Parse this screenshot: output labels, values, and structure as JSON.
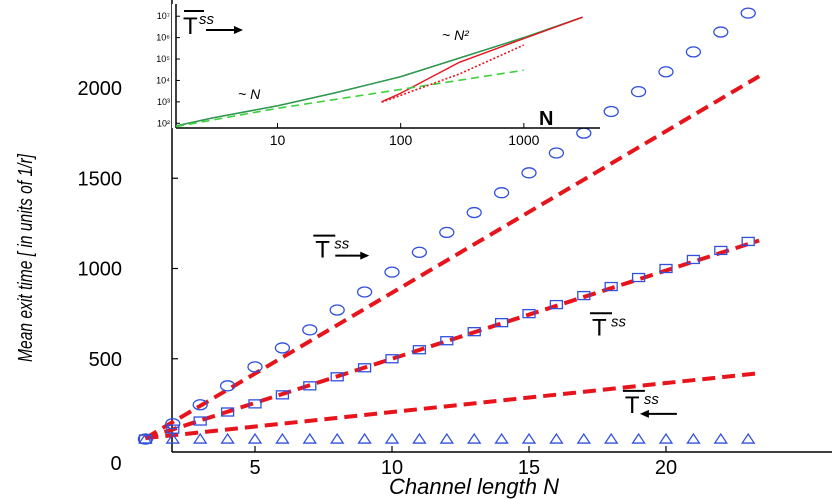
{
  "chart_data": [
    {
      "type": "scatter",
      "xlabel": "Channel length N",
      "ylabel": "Mean exit time [ in units of 1/r]",
      "xlim": [
        0,
        25
      ],
      "ylim": [
        0,
        2500
      ],
      "x_ticks": [
        "5",
        "10",
        "15",
        "20"
      ],
      "y_ticks": [
        "500",
        "1000",
        "1500",
        "2000"
      ],
      "origin_label": "0",
      "grid": false,
      "series": [
        {
          "name": "T̄ss →",
          "marker": "circle",
          "color": "#3050e0",
          "x": [
            1,
            2,
            3,
            4,
            5,
            6,
            7,
            8,
            9,
            10,
            11,
            12,
            13,
            14,
            15,
            16,
            17,
            18,
            19,
            20,
            21,
            22,
            23
          ],
          "y": [
            55,
            140,
            245,
            350,
            455,
            560,
            660,
            770,
            870,
            980,
            1090,
            1200,
            1310,
            1420,
            1530,
            1640,
            1750,
            1870,
            1980,
            2090,
            2200,
            2310,
            2415
          ]
        },
        {
          "name": "T̄ss",
          "marker": "square",
          "color": "#3050e0",
          "x": [
            1,
            2,
            3,
            4,
            5,
            6,
            7,
            8,
            9,
            10,
            11,
            12,
            13,
            14,
            15,
            16,
            17,
            18,
            19,
            20,
            21,
            22,
            23
          ],
          "y": [
            55,
            110,
            155,
            205,
            250,
            300,
            350,
            400,
            450,
            500,
            550,
            600,
            650,
            700,
            750,
            800,
            850,
            900,
            950,
            1000,
            1050,
            1100,
            1150
          ]
        },
        {
          "name": "T̄ss ←",
          "marker": "triangle",
          "color": "#3050e0",
          "x": [
            1,
            2,
            3,
            4,
            5,
            6,
            7,
            8,
            9,
            10,
            11,
            12,
            13,
            14,
            15,
            16,
            17,
            18,
            19,
            20,
            21,
            22,
            23
          ],
          "y": [
            55,
            55,
            55,
            55,
            55,
            55,
            55,
            55,
            55,
            55,
            55,
            55,
            55,
            55,
            55,
            55,
            55,
            55,
            55,
            55,
            55,
            55,
            55
          ]
        }
      ],
      "lines": [
        {
          "style": "dashed",
          "color": "#e8141c",
          "x": [
            1,
            23.4
          ],
          "y": [
            60,
            2065
          ]
        },
        {
          "style": "dashed",
          "color": "#e8141c",
          "x": [
            1,
            23.4
          ],
          "y": [
            60,
            1155
          ]
        },
        {
          "style": "dashed",
          "color": "#e8141c",
          "x": [
            1,
            23.4
          ],
          "y": [
            60,
            420
          ]
        }
      ],
      "annotations": [
        {
          "text": "T",
          "sup": "ss",
          "arrow": "right",
          "x": 7.2,
          "y": 1060
        },
        {
          "text": "T",
          "sup": "ss",
          "arrow": "none",
          "x": 17.3,
          "y": 630
        },
        {
          "text": "T",
          "sup": "ss",
          "arrow": "left",
          "x": 18.5,
          "y": 200
        }
      ]
    },
    {
      "type": "line",
      "scale": "log-log",
      "xlabel": "N",
      "title": "",
      "x_ticks": [
        "10",
        "100",
        "1000"
      ],
      "y_ticks": [
        "10²",
        "10³",
        "10⁴",
        "10⁵",
        "10⁶",
        "10⁷"
      ],
      "annotations": [
        "~ N",
        "~ N²"
      ],
      "legend_label": "T",
      "legend_sup": "ss",
      "xlim": [
        1.5,
        4000
      ],
      "ylim": [
        60,
        30000000
      ],
      "series": [
        {
          "color": "#3050e0",
          "style": "solid",
          "x": [
            1.5,
            3,
            10,
            30,
            100,
            300,
            1000,
            3000
          ],
          "y": [
            75,
            180,
            650,
            2700,
            15000,
            110000,
            1000000,
            9000000
          ]
        },
        {
          "color": "#2e9e3e",
          "style": "solid",
          "x": [
            1.5,
            3,
            10,
            30,
            100,
            300,
            1000,
            3000
          ],
          "y": [
            75,
            180,
            650,
            2700,
            15000,
            110000,
            1000000,
            9000000
          ]
        },
        {
          "color": "#e8141c",
          "style": "solid",
          "x": [
            70,
            100,
            300,
            1000,
            3000
          ],
          "y": [
            1000,
            2500,
            70000,
            900000,
            9000000
          ]
        },
        {
          "color": "#3cd23c",
          "style": "dashed",
          "x": [
            1.5,
            10,
            100,
            1000
          ],
          "y": [
            70,
            500,
            3800,
            30000
          ]
        },
        {
          "color": "#e8141c",
          "style": "dotted",
          "x": [
            70,
            300,
            1000
          ],
          "y": [
            950,
            20000,
            450000
          ]
        }
      ]
    }
  ]
}
